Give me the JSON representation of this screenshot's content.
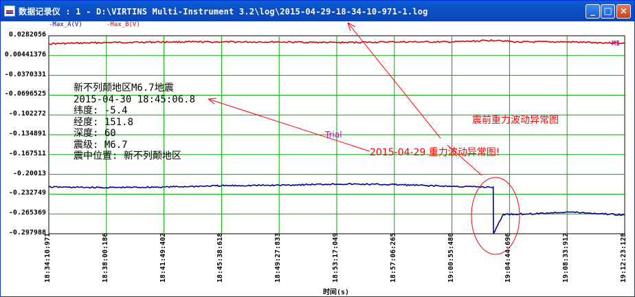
{
  "window": {
    "title": "数据记录仪 : 1 - D:\\VIRTINS Multi-Instrument 3.2\\log\\2015-04-29-18-34-10-971-1.log",
    "minimize": "_",
    "maximize": "□",
    "close": "×"
  },
  "legend": {
    "a": "-Max_A(V)",
    "b": "-Max_B(V)",
    "mi": "MI"
  },
  "colors": {
    "channel_a": "#00008b",
    "channel_b": "#dd0000",
    "grid": "#00aa00",
    "annotation": "#ff0000",
    "watermark": "#cc00cc"
  },
  "chart_data": {
    "type": "line",
    "xlabel": "时间(s)",
    "ylabel": "",
    "ylim": [
      -0.297988,
      0.0282056
    ],
    "y_ticks": [
      "0.0282056",
      "0.00441376",
      "-0.0370331",
      "-0.0696525",
      "-0.102272",
      "-0.134891",
      "-0.167511",
      "-0.20013",
      "-0.232749",
      "-0.265369",
      "-0.297988"
    ],
    "x_ticks": [
      "18:34:10:971",
      "18:38:00:186",
      "18:41:49:402",
      "18:45:38:618",
      "18:49:27:833",
      "18:53:17:049",
      "18:57:06:265",
      "19:00:55:480",
      "19:04:44:696",
      "19:08:33:912",
      "19:12:23:128"
    ],
    "series": [
      {
        "name": "-Max_B(V)",
        "color": "#dd0000",
        "x": [
          "18:34:10:971",
          "18:38:00:186",
          "18:41:49:402",
          "18:45:38:618",
          "18:49:27:833",
          "18:53:17:049",
          "18:57:06:265",
          "19:00:55:480",
          "19:02:00:000",
          "19:04:00:000",
          "19:05:00:000",
          "19:08:33:912",
          "19:12:23:128"
        ],
        "values": [
          0.015,
          0.017,
          0.018,
          0.018,
          0.018,
          0.017,
          0.018,
          0.018,
          0.019,
          0.021,
          0.018,
          0.018,
          0.016
        ]
      },
      {
        "name": "-Max_A(V)",
        "color": "#00008b",
        "x": [
          "18:34:10:971",
          "18:38:00:186",
          "18:41:49:402",
          "18:45:38:618",
          "18:49:27:833",
          "18:53:17:049",
          "18:57:06:265",
          "19:00:55:480",
          "19:03:00:000",
          "19:03:40:000",
          "19:03:41:000",
          "19:04:20:000",
          "19:06:30:000",
          "19:08:33:912",
          "19:12:23:128"
        ],
        "values": [
          -0.221,
          -0.222,
          -0.221,
          -0.219,
          -0.218,
          -0.216,
          -0.217,
          -0.22,
          -0.221,
          -0.221,
          -0.298,
          -0.266,
          -0.265,
          -0.262,
          -0.267
        ]
      }
    ]
  },
  "info": {
    "line1": "新不列颠地区M6.7地震",
    "line2": "2015-04-30 18:45:06.8",
    "line3": "纬度: -5.4",
    "line4": "经度: 151.8",
    "line5": "深度: 60",
    "line6": "震级: M6.7",
    "line7": "震中位置: 新不列颠地区"
  },
  "annotations": {
    "pre_quake": "震前重力波动异常图",
    "date_caption": "2015-04-29  重力波动异常图!",
    "trial": "Trial"
  }
}
